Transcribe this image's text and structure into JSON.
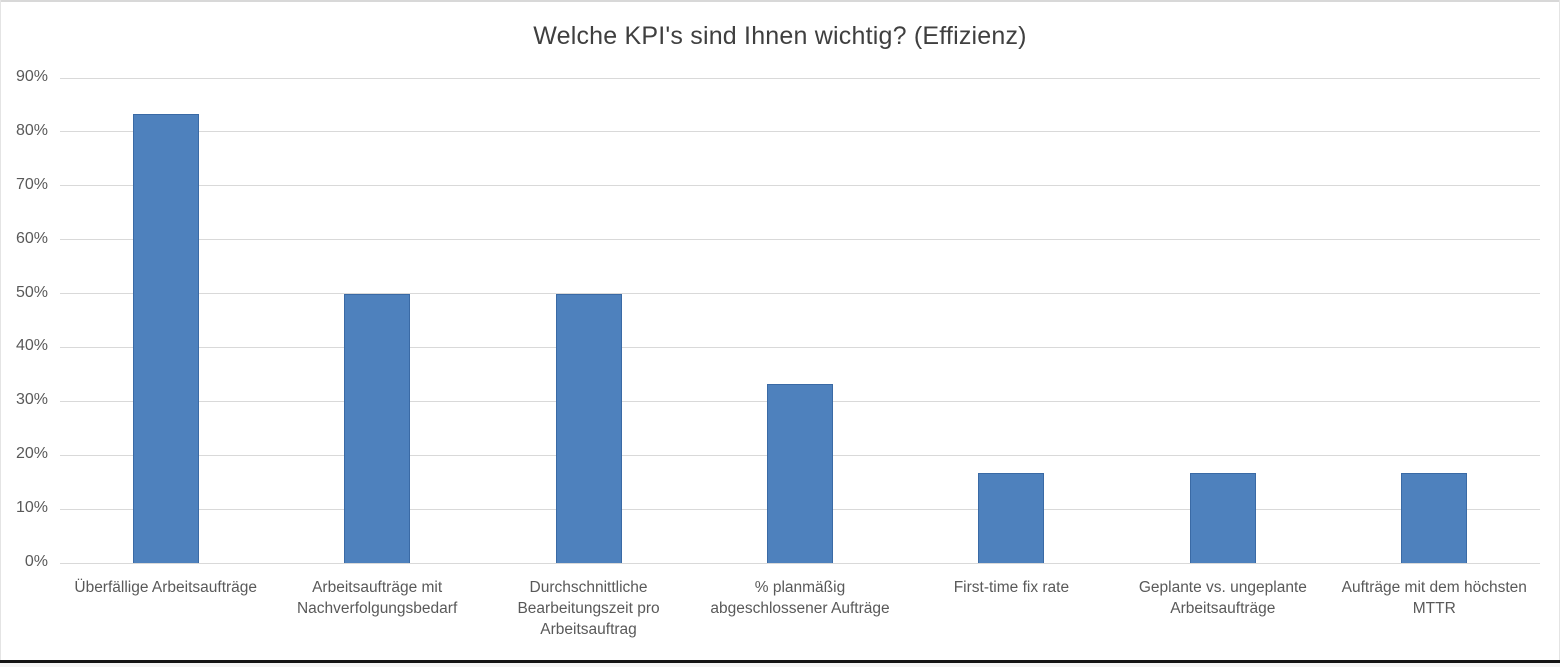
{
  "chart_data": {
    "type": "bar",
    "title": "Welche KPI's sind Ihnen wichtig? (Effizienz)",
    "categories": [
      "Überfällige Arbeitsaufträge",
      "Arbeitsaufträge mit Nachverfolgungsbedarf",
      "Durchschnittliche Bearbeitungszeit pro Arbeitsauftrag",
      "% planmäßig abgeschlossener Aufträge",
      "First-time fix rate",
      "Geplante vs. ungeplante Arbeitsaufträge",
      "Aufträge mit dem höchsten MTTR"
    ],
    "values": [
      83.3,
      50,
      50,
      33.3,
      16.7,
      16.7,
      16.7
    ],
    "unit": "%",
    "y_ticks": [
      "0%",
      "10%",
      "20%",
      "30%",
      "40%",
      "50%",
      "60%",
      "70%",
      "80%",
      "90%"
    ],
    "ylim": [
      0,
      90
    ],
    "grid": "horizontal",
    "legend": "none",
    "xlabel": "",
    "ylabel": "",
    "bar_color": "#4E81BD",
    "bar_border_color": "#3A6AA5",
    "gridline_color": "#d9d9d9",
    "title_color": "#3f3f3f",
    "tick_label_color": "#595959"
  }
}
